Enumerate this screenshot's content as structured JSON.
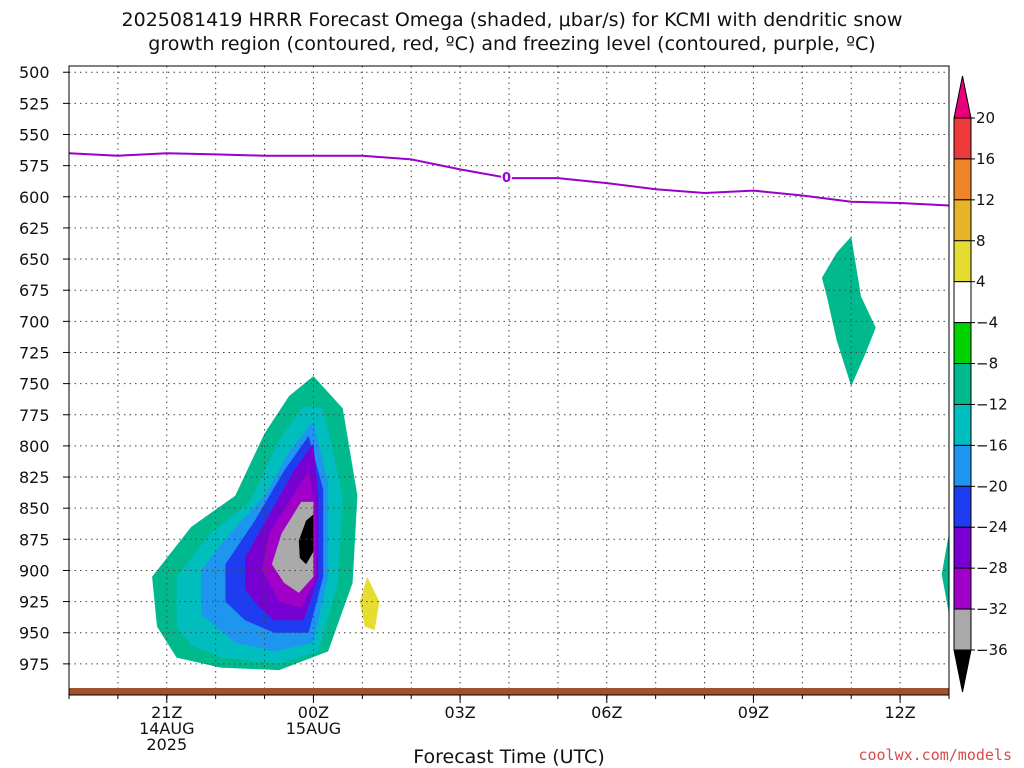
{
  "title_line1": "2025081419 HRRR Forecast Omega (shaded, μbar/s) for KCMI with dendritic snow",
  "title_line2": "growth region (contoured, red, ºC) and freezing level (contoured, purple, ºC)",
  "credit": "coolwx.com/models",
  "chart_data": {
    "type": "heatmap",
    "title": "2025081419 HRRR Forecast Omega (shaded, μbar/s) for KCMI with dendritic snow growth region (contoured, red, ºC) and freezing level (contoured, purple, ºC)",
    "xlabel": "Forecast Time (UTC)",
    "ylabel": "",
    "x_unit": "hours from 14 Aug 2025 19Z",
    "xlim": [
      0,
      18
    ],
    "ylim": [
      1000,
      495
    ],
    "y_ticks": [
      500,
      525,
      550,
      575,
      600,
      625,
      650,
      675,
      700,
      725,
      750,
      775,
      800,
      825,
      850,
      875,
      900,
      925,
      950,
      975
    ],
    "x_ticks": [
      {
        "x": 2,
        "label": "21Z",
        "sub1": "14AUG",
        "sub2": "2025"
      },
      {
        "x": 5,
        "label": "00Z",
        "sub1": "15AUG",
        "sub2": ""
      },
      {
        "x": 8,
        "label": "03Z",
        "sub1": "",
        "sub2": ""
      },
      {
        "x": 11,
        "label": "06Z",
        "sub1": "",
        "sub2": ""
      },
      {
        "x": 14,
        "label": "09Z",
        "sub1": "",
        "sub2": ""
      },
      {
        "x": 17,
        "label": "12Z",
        "sub1": "",
        "sub2": ""
      }
    ],
    "colorbar": {
      "levels": [
        20,
        16,
        12,
        8,
        4,
        -4,
        -8,
        -12,
        -16,
        -20,
        -24,
        -28,
        -32,
        -36
      ],
      "colors": [
        "#e8007a",
        "#ee3a3a",
        "#f08428",
        "#e6b429",
        "#e6dc32",
        "#ffffff",
        "#00d200",
        "#00b98c",
        "#00bebe",
        "#1e96f0",
        "#1e3cf0",
        "#7800d2",
        "#a000c8",
        "#aaaaaa",
        "#000000"
      ]
    },
    "freezing_level": {
      "color": "#9900cc",
      "label": "0",
      "label_at": [
        8.95,
        584
      ],
      "points": [
        [
          0,
          565
        ],
        [
          1,
          567
        ],
        [
          2,
          565
        ],
        [
          3,
          566
        ],
        [
          4,
          567
        ],
        [
          5,
          567
        ],
        [
          6,
          567
        ],
        [
          7,
          570
        ],
        [
          8,
          578
        ],
        [
          9,
          585
        ],
        [
          10,
          585
        ],
        [
          11,
          589
        ],
        [
          12,
          594
        ],
        [
          13,
          597
        ],
        [
          14,
          595
        ],
        [
          15,
          599
        ],
        [
          16,
          604
        ],
        [
          17,
          605
        ],
        [
          18,
          607
        ]
      ]
    },
    "omega_regions": [
      {
        "value": -8,
        "points": [
          [
            1.8,
            945
          ],
          [
            1.7,
            905
          ],
          [
            2.5,
            865
          ],
          [
            3.4,
            840
          ],
          [
            4.0,
            790
          ],
          [
            4.5,
            760
          ],
          [
            5.0,
            744
          ],
          [
            5.6,
            770
          ],
          [
            5.9,
            840
          ],
          [
            5.8,
            910
          ],
          [
            5.3,
            965
          ],
          [
            4.3,
            980
          ],
          [
            3.1,
            978
          ],
          [
            2.2,
            970
          ]
        ]
      },
      {
        "value": -12,
        "points": [
          [
            2.2,
            945
          ],
          [
            2.2,
            905
          ],
          [
            2.9,
            870
          ],
          [
            3.7,
            845
          ],
          [
            4.3,
            795
          ],
          [
            4.8,
            768
          ],
          [
            5.2,
            770
          ],
          [
            5.6,
            840
          ],
          [
            5.5,
            910
          ],
          [
            5.1,
            965
          ],
          [
            4.3,
            975
          ],
          [
            3.1,
            970
          ],
          [
            2.5,
            960
          ]
        ]
      },
      {
        "value": -16,
        "points": [
          [
            2.7,
            935
          ],
          [
            2.7,
            900
          ],
          [
            3.3,
            870
          ],
          [
            4.0,
            840
          ],
          [
            4.5,
            805
          ],
          [
            5.0,
            780
          ],
          [
            5.3,
            830
          ],
          [
            5.3,
            905
          ],
          [
            5.0,
            958
          ],
          [
            4.2,
            965
          ],
          [
            3.4,
            958
          ]
        ]
      },
      {
        "value": -20,
        "points": [
          [
            3.2,
            925
          ],
          [
            3.2,
            895
          ],
          [
            3.8,
            860
          ],
          [
            4.4,
            820
          ],
          [
            4.9,
            792
          ],
          [
            5.2,
            835
          ],
          [
            5.2,
            905
          ],
          [
            4.9,
            950
          ],
          [
            4.2,
            950
          ],
          [
            3.6,
            940
          ]
        ]
      },
      {
        "value": -24,
        "points": [
          [
            3.6,
            915
          ],
          [
            3.6,
            890
          ],
          [
            4.1,
            855
          ],
          [
            4.6,
            820
          ],
          [
            5.0,
            798
          ],
          [
            5.1,
            840
          ],
          [
            5.1,
            905
          ],
          [
            4.8,
            940
          ],
          [
            4.2,
            940
          ],
          [
            3.9,
            930
          ]
        ]
      },
      {
        "value": -28,
        "points": [
          [
            3.95,
            900
          ],
          [
            4.1,
            870
          ],
          [
            4.5,
            845
          ],
          [
            4.9,
            820
          ],
          [
            5.05,
            850
          ],
          [
            5.05,
            905
          ],
          [
            4.75,
            930
          ],
          [
            4.3,
            925
          ]
        ]
      },
      {
        "value": -32,
        "points": [
          [
            4.15,
            895
          ],
          [
            4.35,
            870
          ],
          [
            4.75,
            845
          ],
          [
            5.0,
            845
          ],
          [
            5.0,
            905
          ],
          [
            4.7,
            918
          ],
          [
            4.4,
            910
          ]
        ]
      },
      {
        "value": -36,
        "points": [
          [
            4.7,
            876
          ],
          [
            4.85,
            860
          ],
          [
            5.0,
            855
          ],
          [
            5.0,
            885
          ],
          [
            4.85,
            895
          ],
          [
            4.72,
            890
          ]
        ]
      },
      {
        "value": 4,
        "points": [
          [
            3.8,
            615
          ],
          [
            3.95,
            600
          ],
          [
            4.2,
            625
          ],
          [
            4.0,
            655
          ],
          [
            3.85,
            640
          ]
        ]
      },
      {
        "value": 4,
        "points": [
          [
            1.8,
            775
          ],
          [
            2.0,
            745
          ],
          [
            2.3,
            755
          ],
          [
            2.6,
            775
          ],
          [
            2.2,
            790
          ],
          [
            1.95,
            808
          ]
        ]
      },
      {
        "value": 4,
        "points": [
          [
            5.9,
            960
          ],
          [
            5.95,
            900
          ],
          [
            6.1,
            873
          ],
          [
            6.7,
            880
          ],
          [
            7.0,
            910
          ],
          [
            7.6,
            940
          ],
          [
            8.0,
            948
          ],
          [
            8.0,
            968
          ],
          [
            7.0,
            970
          ],
          [
            6.2,
            965
          ]
        ]
      },
      {
        "value": 8,
        "points": [
          [
            5.95,
            925
          ],
          [
            6.1,
            905
          ],
          [
            6.35,
            925
          ],
          [
            6.25,
            948
          ],
          [
            6.05,
            945
          ]
        ]
      },
      {
        "value": 4,
        "points": [
          [
            9.0,
            925
          ],
          [
            10.0,
            925
          ],
          [
            10.9,
            945
          ],
          [
            11.5,
            958
          ],
          [
            11.0,
            968
          ],
          [
            10.5,
            978
          ],
          [
            9.0,
            975
          ]
        ]
      },
      {
        "value": -8,
        "points": [
          [
            15.4,
            665
          ],
          [
            15.7,
            645
          ],
          [
            16.0,
            632
          ],
          [
            16.2,
            680
          ],
          [
            16.5,
            705
          ],
          [
            16.3,
            725
          ],
          [
            16.0,
            752
          ],
          [
            15.7,
            715
          ],
          [
            15.5,
            680
          ]
        ]
      },
      {
        "value": 4,
        "points": [
          [
            16.35,
            840
          ],
          [
            16.5,
            805
          ],
          [
            16.9,
            788
          ],
          [
            17.35,
            805
          ],
          [
            17.35,
            850
          ],
          [
            17.1,
            870
          ],
          [
            16.9,
            888
          ],
          [
            16.6,
            865
          ]
        ]
      },
      {
        "value": -8,
        "points": [
          [
            17.85,
            903
          ],
          [
            18.0,
            870
          ],
          [
            18.0,
            935
          ]
        ]
      }
    ]
  }
}
